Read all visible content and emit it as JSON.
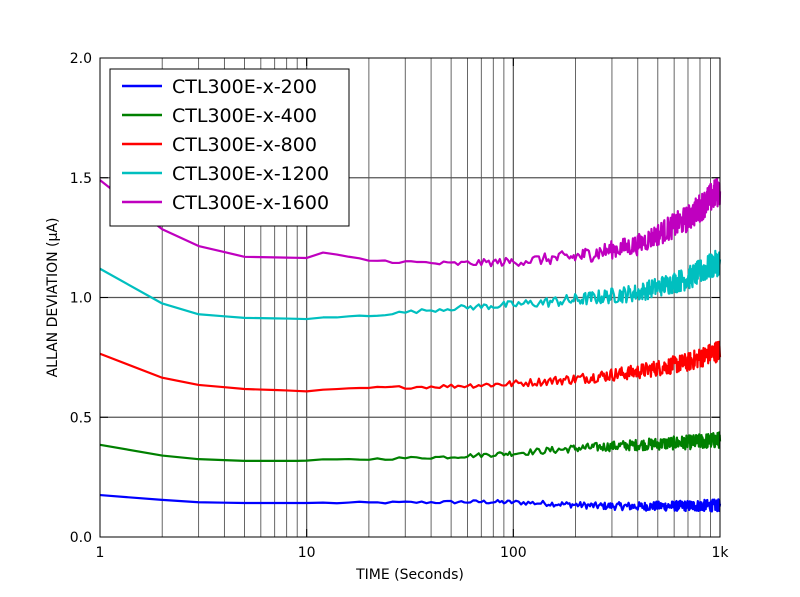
{
  "chart_data": {
    "type": "line",
    "xlabel": "TIME (Seconds)",
    "ylabel": "ALLAN DEVIATION (µA)",
    "xscale": "log",
    "xlim": [
      1,
      1000
    ],
    "ylim": [
      0.0,
      2.0
    ],
    "grid": true,
    "legend_placement": "top-left",
    "x_ticks": [
      {
        "value": 1,
        "label": "1"
      },
      {
        "value": 10,
        "label": "10"
      },
      {
        "value": 100,
        "label": "100"
      },
      {
        "value": 1000,
        "label": "1k"
      }
    ],
    "y_ticks": [
      {
        "value": 0.0,
        "label": "0.0"
      },
      {
        "value": 0.5,
        "label": "0.5"
      },
      {
        "value": 1.0,
        "label": "1.0"
      },
      {
        "value": 1.5,
        "label": "1.5"
      },
      {
        "value": 2.0,
        "label": "2.0"
      }
    ],
    "series": [
      {
        "name": "CTL300E-x-200",
        "color": "#0000ff",
        "points": [
          [
            1,
            0.175
          ],
          [
            2,
            0.155
          ],
          [
            3,
            0.145
          ],
          [
            5,
            0.142
          ],
          [
            10,
            0.142
          ],
          [
            20,
            0.143
          ],
          [
            40,
            0.145
          ],
          [
            70,
            0.147
          ],
          [
            100,
            0.145
          ],
          [
            150,
            0.14
          ],
          [
            250,
            0.13
          ],
          [
            400,
            0.128
          ],
          [
            700,
            0.13
          ],
          [
            1000,
            0.132
          ]
        ]
      },
      {
        "name": "CTL300E-x-400",
        "color": "#008000",
        "points": [
          [
            1,
            0.385
          ],
          [
            2,
            0.34
          ],
          [
            3,
            0.325
          ],
          [
            5,
            0.318
          ],
          [
            9,
            0.318
          ],
          [
            20,
            0.325
          ],
          [
            50,
            0.335
          ],
          [
            100,
            0.35
          ],
          [
            200,
            0.37
          ],
          [
            400,
            0.385
          ],
          [
            700,
            0.395
          ],
          [
            1000,
            0.405
          ]
        ]
      },
      {
        "name": "CTL300E-x-800",
        "color": "#ff0000",
        "points": [
          [
            1,
            0.765
          ],
          [
            2,
            0.665
          ],
          [
            3,
            0.635
          ],
          [
            5,
            0.618
          ],
          [
            8,
            0.612
          ],
          [
            10,
            0.608
          ],
          [
            20,
            0.622
          ],
          [
            50,
            0.63
          ],
          [
            100,
            0.64
          ],
          [
            200,
            0.66
          ],
          [
            400,
            0.69
          ],
          [
            700,
            0.73
          ],
          [
            1000,
            0.78
          ]
        ]
      },
      {
        "name": "CTL300E-x-1200",
        "color": "#00bfbf",
        "points": [
          [
            1,
            1.12
          ],
          [
            2,
            0.975
          ],
          [
            3,
            0.93
          ],
          [
            5,
            0.915
          ],
          [
            8,
            0.912
          ],
          [
            10,
            0.91
          ],
          [
            20,
            0.925
          ],
          [
            50,
            0.955
          ],
          [
            100,
            0.97
          ],
          [
            200,
            0.99
          ],
          [
            400,
            1.02
          ],
          [
            700,
            1.08
          ],
          [
            1000,
            1.15
          ]
        ]
      },
      {
        "name": "CTL300E-x-1600",
        "color": "#bf00bf",
        "points": [
          [
            1,
            1.49
          ],
          [
            2,
            1.285
          ],
          [
            3,
            1.215
          ],
          [
            5,
            1.17
          ],
          [
            10,
            1.165
          ],
          [
            12,
            1.185
          ],
          [
            20,
            1.155
          ],
          [
            50,
            1.14
          ],
          [
            100,
            1.15
          ],
          [
            200,
            1.17
          ],
          [
            400,
            1.22
          ],
          [
            700,
            1.33
          ],
          [
            1000,
            1.45
          ]
        ]
      }
    ]
  }
}
